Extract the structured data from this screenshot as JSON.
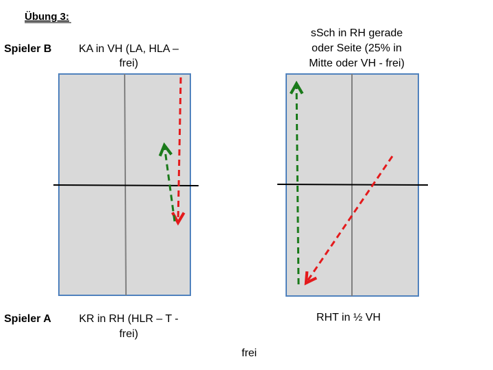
{
  "header": {
    "title": "Übung 3:"
  },
  "player_b": {
    "label": "Spieler B",
    "left_text": [
      "KA in VH (LA, HLA –",
      "frei)"
    ],
    "right_text": [
      "sSch in RH gerade",
      "oder Seite (25% in",
      "Mitte oder VH - frei)"
    ]
  },
  "player_a": {
    "label": "Spieler A",
    "left_text": [
      "KR in RH (HLR – T -",
      "frei)"
    ],
    "right_text": [
      "RHT in ½ VH"
    ]
  },
  "footer": {
    "text": "frei"
  }
}
